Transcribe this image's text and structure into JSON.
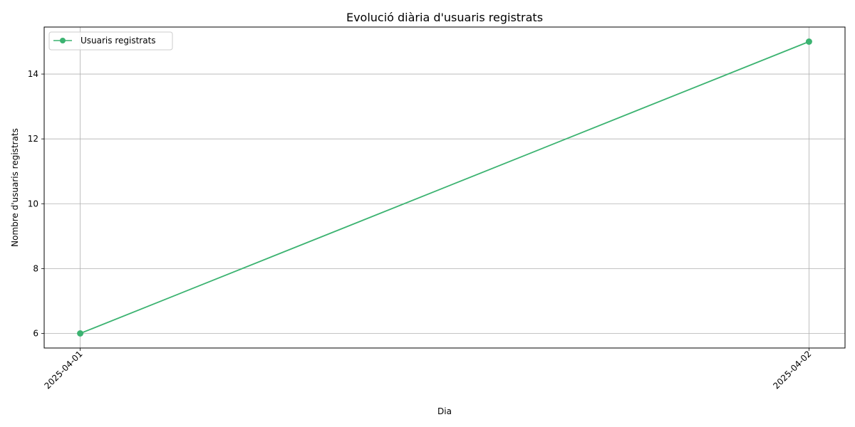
{
  "chart_data": {
    "type": "line",
    "title": "Evolució diària d'usuaris registrats",
    "xlabel": "Dia",
    "ylabel": "Nombre d'usuaris registrats",
    "x": [
      "2025-04-01",
      "2025-04-02"
    ],
    "series": [
      {
        "name": "Usuaris registrats",
        "values": [
          6,
          15
        ],
        "color": "#3cb371",
        "marker": "circle"
      }
    ],
    "ylim": [
      5.55,
      15.45
    ],
    "yticks": [
      6,
      8,
      10,
      12,
      14
    ],
    "xtick_rotation": 45,
    "grid": true,
    "legend": "upper-left",
    "grid_color": "#b0b0b0"
  }
}
